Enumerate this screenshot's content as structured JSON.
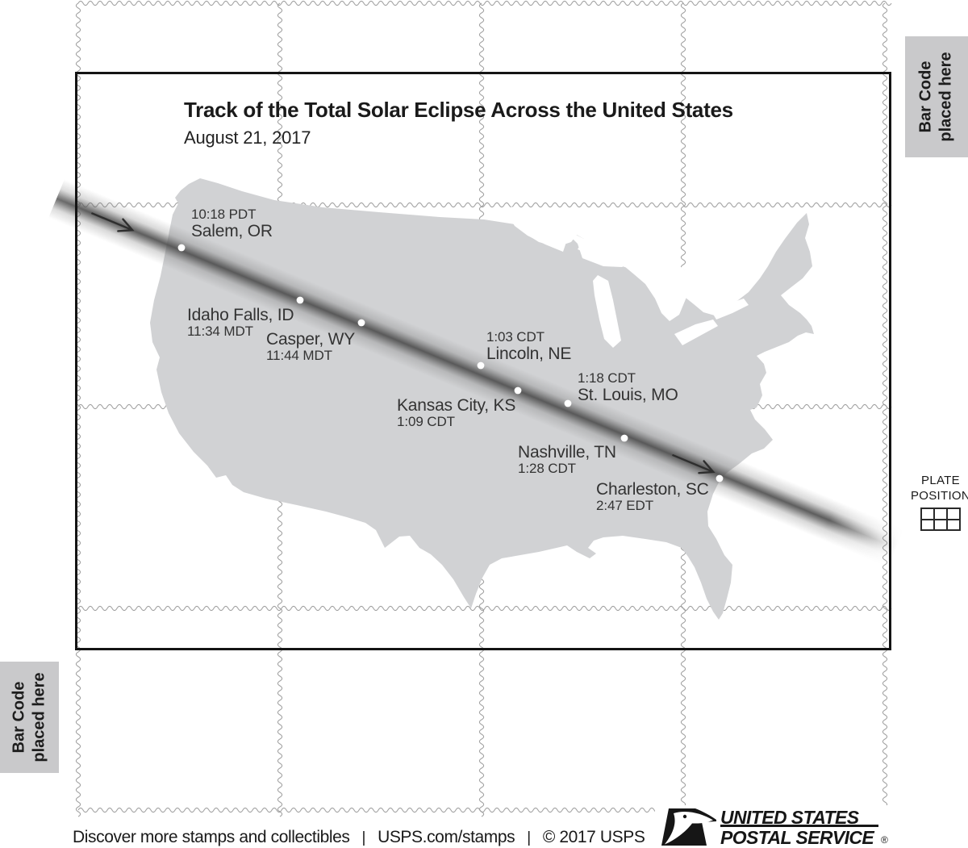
{
  "title": "Track of the Total Solar Eclipse Across the United States",
  "subtitle": "August 21, 2017",
  "cities": [
    {
      "name": "Salem, OR",
      "time": "10:18 PDT"
    },
    {
      "name": "Idaho Falls, ID",
      "time": "11:34 MDT"
    },
    {
      "name": "Casper, WY",
      "time": "11:44 MDT"
    },
    {
      "name": "Lincoln, NE",
      "time": "1:03 CDT"
    },
    {
      "name": "Kansas City, KS",
      "time": "1:09 CDT"
    },
    {
      "name": "St. Louis, MO",
      "time": "1:18 CDT"
    },
    {
      "name": "Nashville, TN",
      "time": "1:28 CDT"
    },
    {
      "name": "Charleston, SC",
      "time": "2:47 EDT"
    }
  ],
  "barcode": {
    "line1": "Bar Code",
    "line2": "placed here"
  },
  "plate": {
    "line1": "PLATE",
    "line2": "POSITION"
  },
  "footer": {
    "items": [
      "Discover more stamps and collectibles",
      "USPS.com/stamps",
      "© 2017 USPS"
    ],
    "separator": "|"
  },
  "logo": {
    "line1": "UNITED STATES",
    "line2": "POSTAL SERVICE",
    "registered": "®"
  },
  "colors": {
    "map_fill": "#d1d2d4",
    "eclipse_band": "#4b4b4b",
    "perforation": "#9d9d9d",
    "frame": "#141414",
    "barcode_bg": "#c9c9cb"
  }
}
